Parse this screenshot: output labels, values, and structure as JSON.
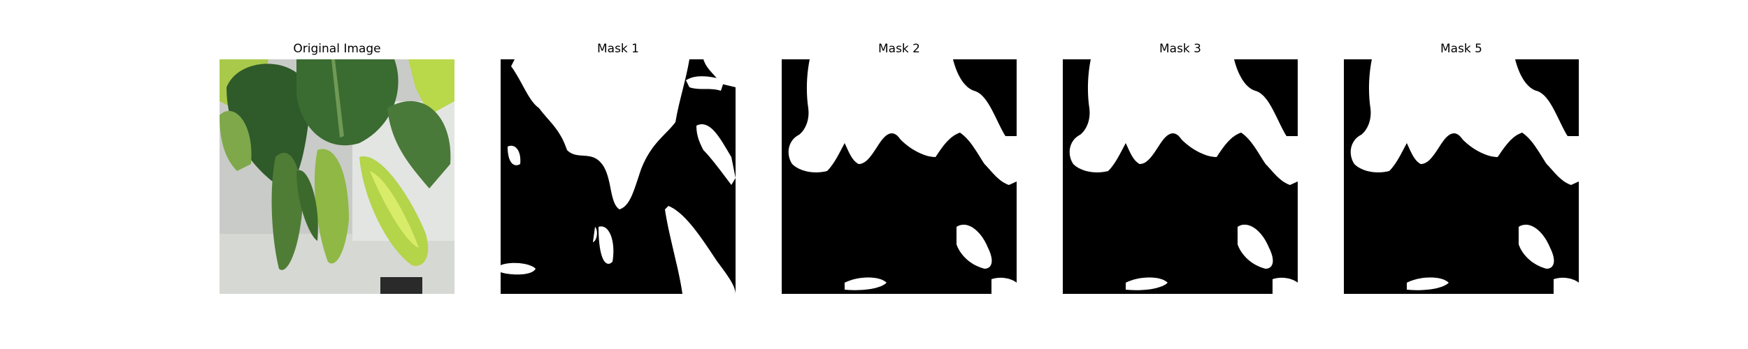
{
  "figure": {
    "panels": [
      {
        "title": "Original Image",
        "content": "photo"
      },
      {
        "title": "Mask 1",
        "content": "mask"
      },
      {
        "title": "Mask 2",
        "content": "mask"
      },
      {
        "title": "Mask 3",
        "content": "mask"
      },
      {
        "title": "Mask 5",
        "content": "mask"
      }
    ],
    "colors": {
      "mask_foreground": "#ffffff",
      "mask_background": "#000000",
      "leaf_dark": "#2f5a2a",
      "leaf_light": "#b9d84a",
      "background_gray": "#c9cbc8"
    }
  }
}
